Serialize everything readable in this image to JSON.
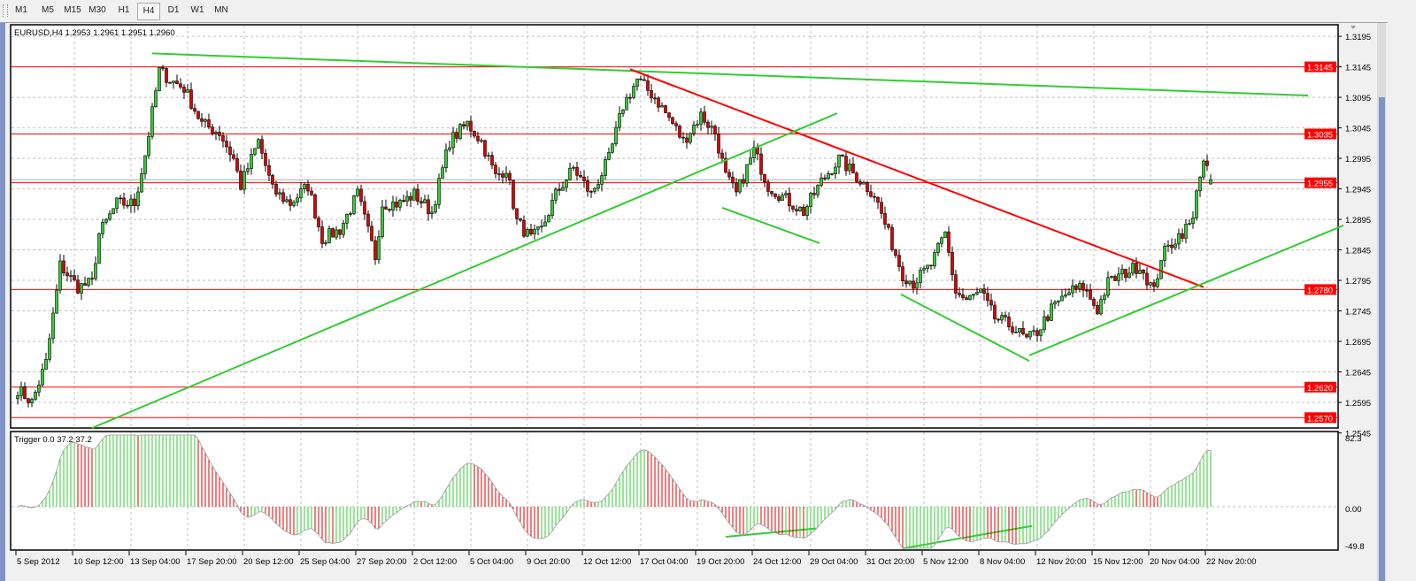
{
  "toolbar": {
    "timeframes": [
      "M1",
      "M5",
      "M15",
      "M30",
      "H1",
      "H4",
      "D1",
      "W1",
      "MN"
    ],
    "active": "H4"
  },
  "chart_title": "EURUSD,H4  1.2953 1.2961 1.2951 1.2960",
  "indicator_title": "Trigger 0.0 37.2 37.2",
  "colors": {
    "bull": "#33cc33",
    "bear": "#dd0000",
    "level": "#ff0000",
    "trend_green": "#33cc33",
    "trend_red": "#ff0000",
    "grid": "#c0c0c0",
    "bid": "#b0b0b0"
  },
  "chart_data": [
    {
      "type": "candlestick",
      "symbol": "EURUSD",
      "timeframe": "H4",
      "ylim": [
        1.2553,
        1.3214
      ],
      "y_ticks": [
        "1.3195",
        "1.3145",
        "1.3095",
        "1.3045",
        "1.2995",
        "1.2945",
        "1.2895",
        "1.2845",
        "1.2795",
        "1.2745",
        "1.2695",
        "1.2645",
        "1.2595",
        "1.2545"
      ],
      "x_ticks": [
        "5 Sep 2012",
        "10 Sep 12:00",
        "13 Sep 04:00",
        "17 Sep 20:00",
        "20 Sep 12:00",
        "25 Sep 04:00",
        "27 Sep 20:00",
        "2 Oct 12:00",
        "5 Oct 04:00",
        "9 Oct 20:00",
        "12 Oct 12:00",
        "17 Oct 04:00",
        "19 Oct 20:00",
        "24 Oct 12:00",
        "29 Oct 04:00",
        "31 Oct 20:00",
        "5 Nov 12:00",
        "8 Nov 04:00",
        "12 Nov 20:00",
        "15 Nov 12:00",
        "20 Nov 04:00",
        "22 Nov 20:00"
      ],
      "bars_per_tick": 16,
      "ohlc_last": {
        "open": 1.2953,
        "high": 1.2961,
        "low": 1.2951,
        "close": 1.296
      },
      "close_path": [
        [
          0,
          1.2617
        ],
        [
          4,
          1.2595
        ],
        [
          8,
          1.266
        ],
        [
          11,
          1.2776
        ],
        [
          12,
          1.282
        ],
        [
          17,
          1.2784
        ],
        [
          21,
          1.2791
        ],
        [
          23,
          1.2871
        ],
        [
          28,
          1.2921
        ],
        [
          33,
          1.2921
        ],
        [
          36,
          1.3001
        ],
        [
          40,
          1.3139
        ],
        [
          43,
          1.3124
        ],
        [
          47,
          1.311
        ],
        [
          52,
          1.3052
        ],
        [
          57,
          1.3037
        ],
        [
          61,
          1.2994
        ],
        [
          63,
          1.295
        ],
        [
          68,
          1.3023
        ],
        [
          72,
          1.2943
        ],
        [
          77,
          1.2921
        ],
        [
          82,
          1.295
        ],
        [
          86,
          1.2863
        ],
        [
          91,
          1.2878
        ],
        [
          96,
          1.2936
        ],
        [
          101,
          1.2834
        ],
        [
          103,
          1.2921
        ],
        [
          108,
          1.2921
        ],
        [
          112,
          1.2936
        ],
        [
          117,
          1.2907
        ],
        [
          122,
          1.3023
        ],
        [
          127,
          1.3052
        ],
        [
          131,
          1.3023
        ],
        [
          135,
          1.2965
        ],
        [
          138,
          1.2979
        ],
        [
          141,
          1.2892
        ],
        [
          145,
          1.2863
        ],
        [
          148,
          1.2878
        ],
        [
          152,
          1.2936
        ],
        [
          157,
          1.2979
        ],
        [
          162,
          1.2936
        ],
        [
          167,
          1.2994
        ],
        [
          171,
          1.3081
        ],
        [
          175,
          1.3124
        ],
        [
          180,
          1.3095
        ],
        [
          185,
          1.3052
        ],
        [
          188,
          1.3023
        ],
        [
          193,
          1.3066
        ],
        [
          197,
          1.3037
        ],
        [
          200,
          1.2965
        ],
        [
          203,
          1.2936
        ],
        [
          208,
          1.3008
        ],
        [
          212,
          1.295
        ],
        [
          217,
          1.2928
        ],
        [
          222,
          1.2907
        ],
        [
          227,
          1.2957
        ],
        [
          232,
          1.2994
        ],
        [
          237,
          1.2965
        ],
        [
          242,
          1.2936
        ],
        [
          246,
          1.2871
        ],
        [
          250,
          1.2805
        ],
        [
          253,
          1.2791
        ],
        [
          258,
          1.282
        ],
        [
          262,
          1.2871
        ],
        [
          265,
          1.2776
        ],
        [
          268,
          1.2762
        ],
        [
          272,
          1.2776
        ],
        [
          276,
          1.2733
        ],
        [
          281,
          1.2719
        ],
        [
          285,
          1.2697
        ],
        [
          288,
          1.2711
        ],
        [
          292,
          1.2747
        ],
        [
          297,
          1.2776
        ],
        [
          301,
          1.2784
        ],
        [
          305,
          1.2747
        ],
        [
          308,
          1.2791
        ],
        [
          312,
          1.2805
        ],
        [
          317,
          1.282
        ],
        [
          321,
          1.2776
        ],
        [
          323,
          1.2834
        ],
        [
          327,
          1.2863
        ],
        [
          332,
          1.2892
        ],
        [
          333,
          1.295
        ],
        [
          335,
          1.2986
        ],
        [
          337,
          1.296
        ]
      ],
      "levels": [
        {
          "price": 1.3145,
          "label": "1.3145"
        },
        {
          "price": 1.3035,
          "label": "1.3035"
        },
        {
          "price": 1.2955,
          "label": "1.2955"
        },
        {
          "price": 1.278,
          "label": "1.2780"
        },
        {
          "price": 1.262,
          "label": "1.2620"
        },
        {
          "price": 1.257,
          "label": "1.2570"
        }
      ],
      "bid": 1.296,
      "trendlines": [
        {
          "color": "green",
          "from": [
            38,
            1.3167
          ],
          "to": [
            364.5,
            1.3098
          ]
        },
        {
          "color": "red",
          "from": [
            173,
            1.3141
          ],
          "to": [
            335,
            1.2784
          ]
        },
        {
          "color": "green",
          "from": [
            21,
            1.2553
          ],
          "to": [
            231.5,
            1.3069
          ]
        },
        {
          "color": "green",
          "from": [
            199,
            1.2914
          ],
          "to": [
            226.5,
            1.2856
          ]
        },
        {
          "color": "green",
          "from": [
            249.5,
            1.2772
          ],
          "to": [
            285.75,
            1.2663
          ]
        },
        {
          "color": "green",
          "from": [
            285.75,
            1.2672
          ],
          "to": [
            374.5,
            1.2885
          ]
        }
      ]
    },
    {
      "type": "histogram",
      "name": "Trigger",
      "values_shown": [
        "0.0",
        "37.2",
        "37.2"
      ],
      "ylim": [
        -49.8,
        82.3
      ],
      "y_ticks": [
        "82.3",
        "0.00",
        "-49.8"
      ],
      "trendlines": [
        {
          "color": "green",
          "from": [
            200,
            -36
          ],
          "to": [
            225.75,
            -26
          ]
        },
        {
          "color": "green",
          "from": [
            250,
            -50
          ],
          "to": [
            286.5,
            -23
          ]
        }
      ]
    }
  ]
}
